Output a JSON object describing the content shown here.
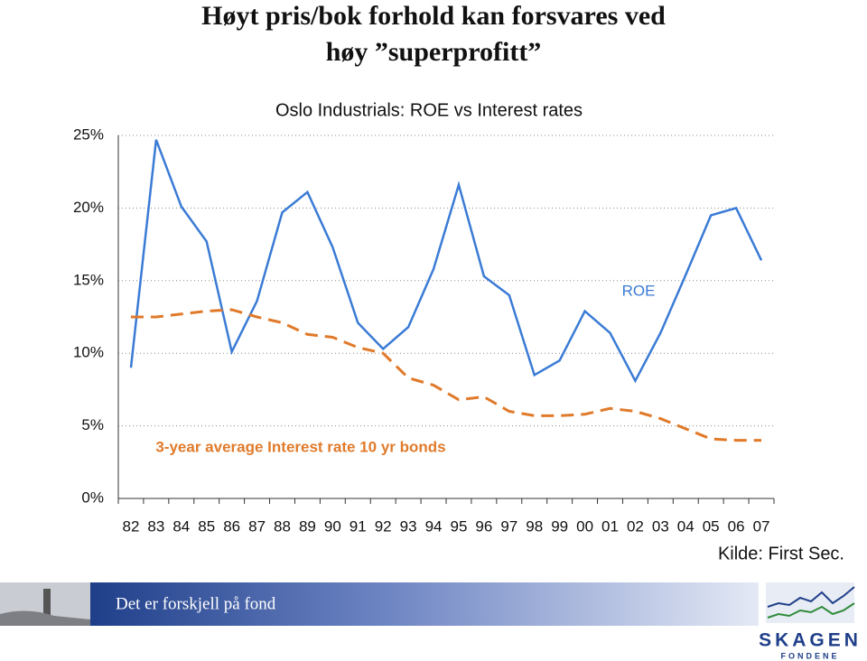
{
  "slide_title": [
    "Høyt pris/bok forhold kan forsvares ved",
    "høy ”superprofitt”"
  ],
  "chart_data": {
    "type": "line",
    "title": "Oslo Industrials: ROE vs Interest rates",
    "categories": [
      "82",
      "83",
      "84",
      "85",
      "86",
      "87",
      "88",
      "89",
      "90",
      "91",
      "92",
      "93",
      "94",
      "95",
      "96",
      "97",
      "98",
      "99",
      "00",
      "01",
      "02",
      "03",
      "04",
      "05",
      "06",
      "07"
    ],
    "series": [
      {
        "name": "ROE",
        "color": "#3a7bd5",
        "dashed": false,
        "values": [
          9.0,
          24.7,
          20.1,
          17.7,
          10.1,
          13.6,
          19.7,
          21.1,
          17.3,
          12.1,
          10.3,
          11.8,
          15.8,
          21.6,
          15.3,
          14.0,
          8.5,
          9.5,
          12.9,
          11.4,
          8.1,
          11.4,
          15.4,
          19.5,
          20.0,
          16.4
        ]
      },
      {
        "name": "3-year average Interest rate 10 yr bonds",
        "color": "#e07a2a",
        "dashed": true,
        "values": [
          12.5,
          12.5,
          12.7,
          12.9,
          13.0,
          12.5,
          12.1,
          11.3,
          11.1,
          10.4,
          10.0,
          8.3,
          7.8,
          6.8,
          7.0,
          6.0,
          5.7,
          5.7,
          5.8,
          6.2,
          6.0,
          5.5,
          4.8,
          4.1,
          4.0,
          4.0
        ]
      }
    ],
    "ylim": [
      0,
      25
    ],
    "yticks": [
      {
        "value": 0,
        "label": "0%"
      },
      {
        "value": 5,
        "label": "5%"
      },
      {
        "value": 10,
        "label": "10%"
      },
      {
        "value": 15,
        "label": "15%"
      },
      {
        "value": 20,
        "label": "20%"
      },
      {
        "value": 25,
        "label": "25%"
      }
    ],
    "grid": true,
    "source": "Kilde: First Sec."
  },
  "footer": {
    "slogan": "Det er forskjell på fond",
    "logo": "SKAGEN",
    "logo_sub": "FONDENE"
  }
}
